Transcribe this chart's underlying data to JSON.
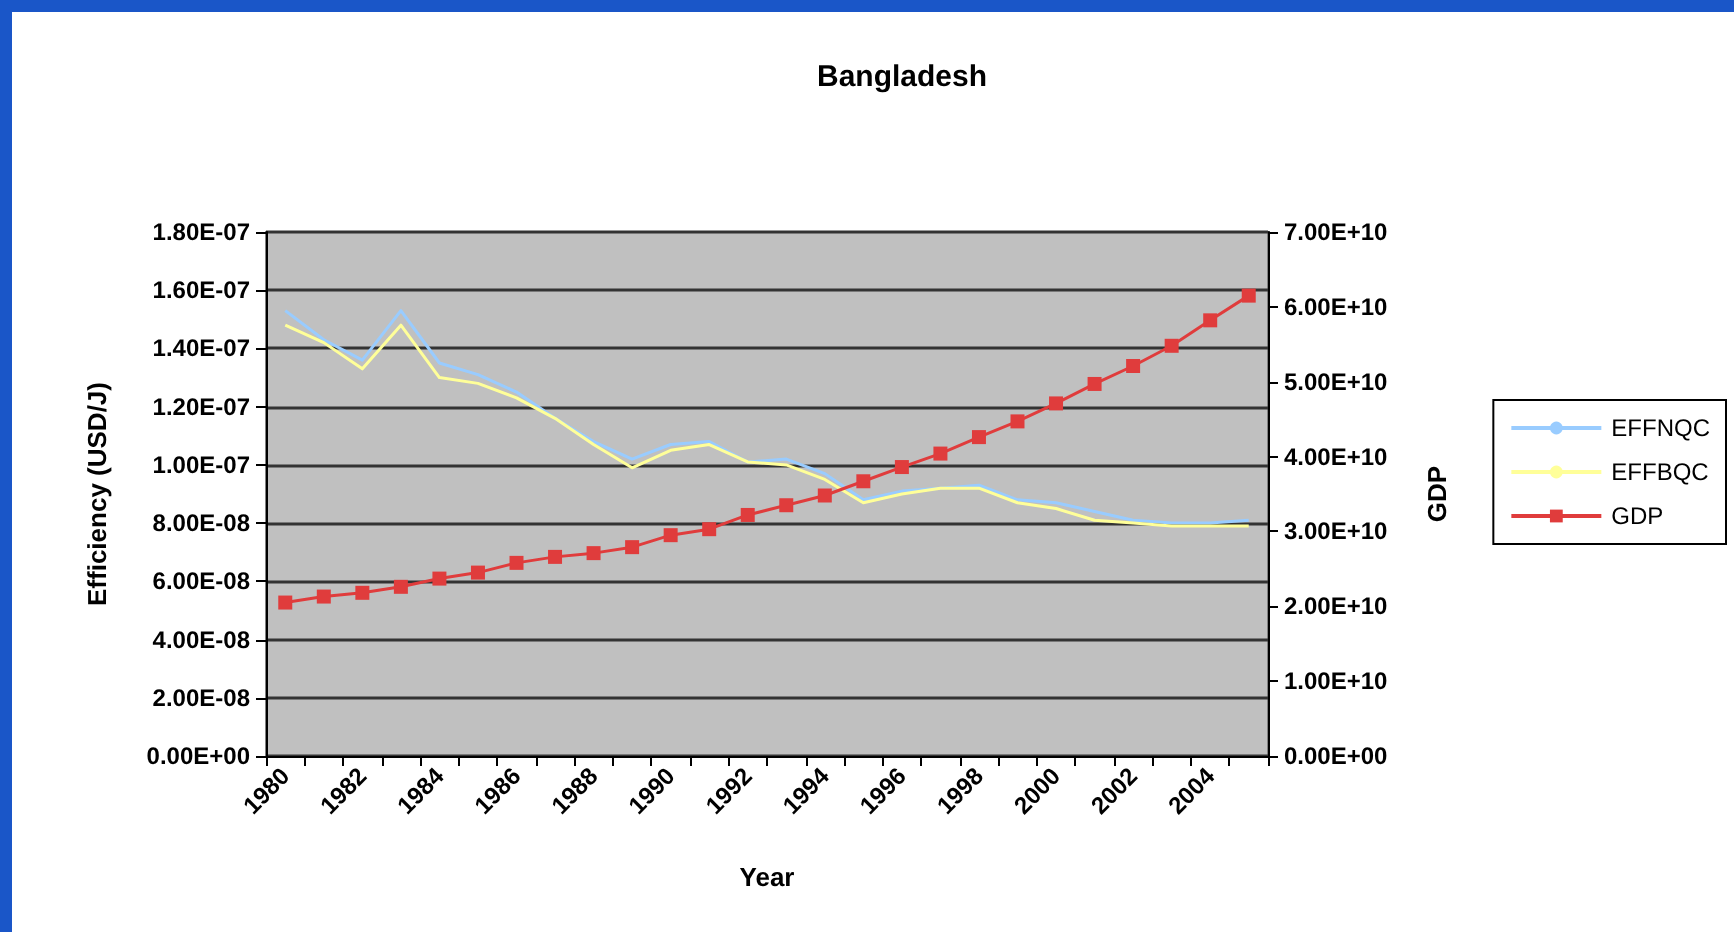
{
  "chart_data": {
    "type": "line",
    "title": "Bangladesh",
    "xlabel": "Year",
    "ylabel": "Efficiency (USD/J)",
    "y2label": "GDP",
    "categories": [
      "1980",
      null,
      "1982",
      null,
      "1984",
      null,
      "1986",
      null,
      "1988",
      null,
      "1990",
      null,
      "1992",
      null,
      "1994",
      null,
      "1996",
      null,
      "1998",
      null,
      "2000",
      null,
      "2002",
      null,
      "2004",
      null
    ],
    "series": [
      {
        "name": "EFFNQC",
        "color": "#99ccff",
        "marker": "none",
        "values": [
          1.53e-07,
          1.43e-07,
          1.36e-07,
          1.53e-07,
          1.35e-07,
          1.31e-07,
          1.25e-07,
          1.16e-07,
          1.08e-07,
          1.02e-07,
          1.07e-07,
          1.08e-07,
          1.01e-07,
          1.02e-07,
          9.7e-08,
          8.8e-08,
          9.1e-08,
          9.2e-08,
          9.3e-08,
          8.8e-08,
          8.7e-08,
          8.4e-08,
          8.1e-08,
          8e-08,
          8e-08,
          8.1e-08
        ]
      },
      {
        "name": "EFFBQC",
        "color": "#ffff99",
        "marker": "none",
        "values": [
          1.48e-07,
          1.42e-07,
          1.33e-07,
          1.48e-07,
          1.3e-07,
          1.28e-07,
          1.23e-07,
          1.16e-07,
          1.07e-07,
          9.9e-08,
          1.05e-07,
          1.07e-07,
          1.01e-07,
          1e-07,
          9.5e-08,
          8.7e-08,
          9e-08,
          9.2e-08,
          9.2e-08,
          8.7e-08,
          8.5e-08,
          8.1e-08,
          8e-08,
          7.9e-08,
          7.9e-08,
          7.9e-08
        ]
      },
      {
        "name": "GDP",
        "color": "#e03c3c",
        "marker": "square",
        "axis": "y2",
        "values": [
          20500000000.0,
          21300000000.0,
          21800000000.0,
          22600000000.0,
          23700000000.0,
          24500000000.0,
          25800000000.0,
          26600000000.0,
          27100000000.0,
          27900000000.0,
          29500000000.0,
          30300000000.0,
          32200000000.0,
          33500000000.0,
          34800000000.0,
          36700000000.0,
          38600000000.0,
          40400000000.0,
          42600000000.0,
          44700000000.0,
          47100000000.0,
          49700000000.0,
          52100000000.0,
          54800000000.0,
          58200000000.0,
          61500000000.0
        ]
      }
    ],
    "ylim": [
      0,
      1.8e-07
    ],
    "yticks": [
      {
        "value": 0,
        "label": "0.00E+00"
      },
      {
        "value": 2e-08,
        "label": "2.00E-08"
      },
      {
        "value": 4e-08,
        "label": "4.00E-08"
      },
      {
        "value": 6e-08,
        "label": "6.00E-08"
      },
      {
        "value": 8e-08,
        "label": "8.00E-08"
      },
      {
        "value": 1e-07,
        "label": "1.00E-07"
      },
      {
        "value": 1.2e-07,
        "label": "1.20E-07"
      },
      {
        "value": 1.4e-07,
        "label": "1.40E-07"
      },
      {
        "value": 1.6e-07,
        "label": "1.60E-07"
      },
      {
        "value": 1.8e-07,
        "label": "1.80E-07"
      }
    ],
    "y2lim": [
      0,
      70000000000.0
    ],
    "y2ticks": [
      {
        "value": 0,
        "label": "0.00E+00"
      },
      {
        "value": 10000000000.0,
        "label": "1.00E+10"
      },
      {
        "value": 20000000000.0,
        "label": "2.00E+10"
      },
      {
        "value": 30000000000.0,
        "label": "3.00E+10"
      },
      {
        "value": 40000000000.0,
        "label": "4.00E+10"
      },
      {
        "value": 50000000000.0,
        "label": "5.00E+10"
      },
      {
        "value": 60000000000.0,
        "label": "6.00E+10"
      },
      {
        "value": 70000000000.0,
        "label": "7.00E+10"
      }
    ],
    "grid": "y",
    "legend": "right"
  }
}
